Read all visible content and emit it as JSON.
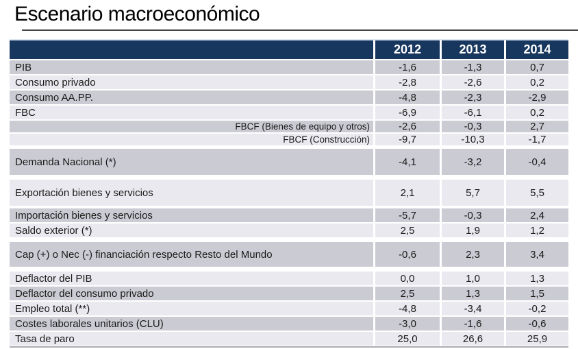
{
  "slide_title": "Escenario macroeconómico",
  "colors": {
    "header_bg": "#17375E",
    "band_dark": "#CBCBD3",
    "band_light": "#E9E9EF",
    "header_text": "#FFFFFF",
    "body_text": "#1A1A1A"
  },
  "chart_data": {
    "type": "table",
    "title": "Escenario macroeconómico",
    "columns": [
      "2012",
      "2013",
      "2014"
    ],
    "rows": [
      {
        "label": "PIB",
        "values": [
          "-1,6",
          "-1,3",
          "0,7"
        ],
        "band": "dark",
        "size": "normal",
        "align": "left",
        "gap": 2
      },
      {
        "label": "Consumo privado",
        "values": [
          "-2,8",
          "-2,6",
          "0,2"
        ],
        "band": "light",
        "size": "normal",
        "align": "left",
        "gap": 2
      },
      {
        "label": "Consumo  AA.PP.",
        "values": [
          "-4,8",
          "-2,3",
          "-2,9"
        ],
        "band": "dark",
        "size": "normal",
        "align": "left",
        "gap": 2
      },
      {
        "label": "FBC",
        "values": [
          "-6,9",
          "-6,1",
          "0,2"
        ],
        "band": "light",
        "size": "normal",
        "align": "left",
        "gap": 2
      },
      {
        "label": "FBCF (Bienes de equipo y otros)",
        "values": [
          "-2,6",
          "-0,3",
          "2,7"
        ],
        "band": "dark",
        "size": "small",
        "align": "right",
        "gap": 2
      },
      {
        "label": "FBCF (Construcción)",
        "values": [
          "-9,7",
          "-10,3",
          "-1,7"
        ],
        "band": "light",
        "size": "small",
        "align": "right",
        "gap": 2
      },
      {
        "label": "Demanda Nacional  (*)",
        "values": [
          "-4,1",
          "-3,2",
          "-0,4"
        ],
        "band": "dark",
        "size": "tall",
        "align": "left",
        "gap": 5
      },
      {
        "label": "Exportación bienes y servicios",
        "values": [
          "2,1",
          "5,7",
          "5,5"
        ],
        "band": "light",
        "size": "tall",
        "align": "left",
        "gap": 7
      },
      {
        "label": "Importación bienes y servicios",
        "values": [
          "-5,7",
          "-0,3",
          "2,4"
        ],
        "band": "dark",
        "size": "normal",
        "align": "left",
        "gap": 4
      },
      {
        "label": "Saldo exterior  (*)",
        "values": [
          "2,5",
          "1,9",
          "1,2"
        ],
        "band": "light",
        "size": "normal",
        "align": "left",
        "gap": 2
      },
      {
        "label": "Cap (+) o Nec (-) financiación respecto Resto del Mundo",
        "values": [
          "-0,6",
          "2,3",
          "3,4"
        ],
        "band": "dark",
        "size": "tall2",
        "align": "left",
        "gap": 7
      },
      {
        "label": "Deflactor del PIB",
        "values": [
          "0,0",
          "1,0",
          "1,3"
        ],
        "band": "light",
        "size": "normal",
        "align": "left",
        "gap": 7
      },
      {
        "label": "Deflactor del consumo privado",
        "values": [
          "2,5",
          "1,3",
          "1,5"
        ],
        "band": "dark",
        "size": "normal",
        "align": "left",
        "gap": 2
      },
      {
        "label": "Empleo total (**)",
        "values": [
          "-4,8",
          "-3,4",
          "-0,2"
        ],
        "band": "light",
        "size": "normal",
        "align": "left",
        "gap": 2
      },
      {
        "label": "Costes laborales unitarios (CLU)",
        "values": [
          "-3,0",
          "-1,6",
          "-0,6"
        ],
        "band": "dark",
        "size": "normal",
        "align": "left",
        "gap": 2
      },
      {
        "label": "Tasa de paro",
        "values": [
          "25,0",
          "26,6",
          "25,9"
        ],
        "band": "light",
        "size": "normal",
        "align": "left",
        "gap": 2
      }
    ]
  }
}
